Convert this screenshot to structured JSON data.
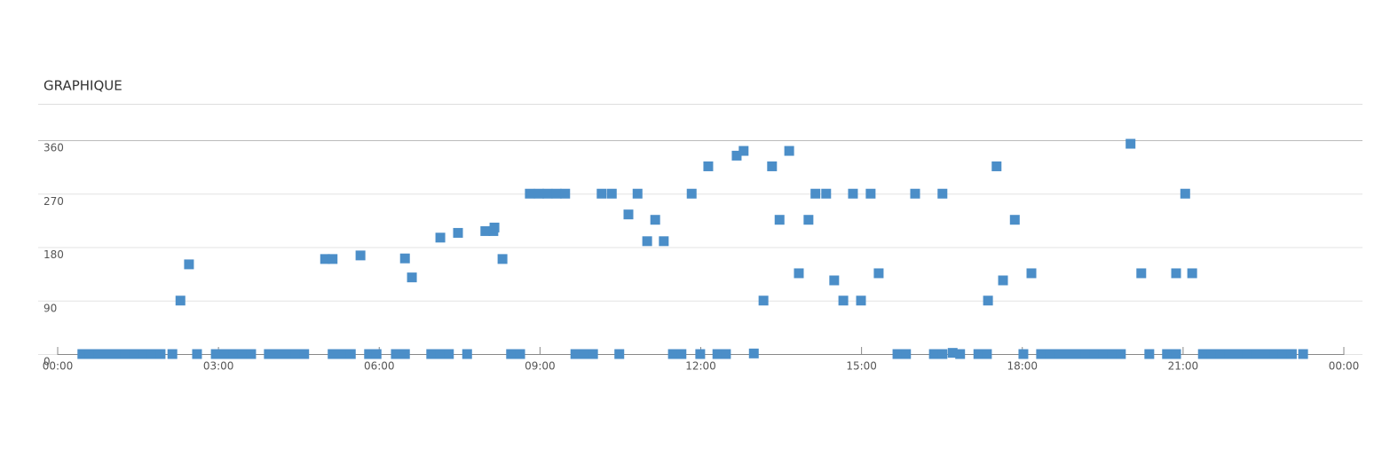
{
  "chart_data": {
    "type": "scatter",
    "title": "GRAPHIQUE",
    "color": "#4b8ec8",
    "grid": true,
    "x": [
      0.46,
      0.6,
      0.76,
      0.93,
      1.09,
      1.26,
      1.42,
      1.59,
      1.76,
      1.92,
      2.14,
      2.29,
      2.45,
      2.6,
      2.95,
      3.11,
      3.28,
      3.45,
      3.61,
      3.94,
      4.11,
      4.27,
      4.44,
      4.6,
      4.99,
      5.13,
      5.13,
      5.3,
      5.47,
      5.65,
      5.81,
      5.95,
      6.31,
      6.48,
      6.48,
      6.61,
      6.97,
      7.14,
      7.14,
      7.3,
      7.47,
      7.64,
      7.98,
      8.13,
      8.15,
      8.3,
      8.46,
      8.63,
      8.81,
      8.98,
      9.14,
      9.31,
      9.47,
      9.66,
      9.82,
      9.99,
      10.15,
      10.34,
      10.48,
      10.65,
      10.82,
      11.0,
      11.15,
      11.31,
      11.48,
      11.64,
      11.83,
      11.99,
      12.14,
      12.31,
      12.47,
      12.67,
      12.8,
      12.99,
      13.17,
      13.33,
      13.47,
      13.65,
      13.83,
      14.01,
      14.14,
      14.34,
      14.49,
      14.66,
      14.84,
      14.99,
      15.17,
      15.32,
      15.67,
      15.83,
      16.0,
      16.35,
      16.51,
      16.51,
      16.7,
      16.84,
      17.18,
      17.34,
      17.36,
      17.52,
      17.64,
      17.86,
      18.02,
      18.17,
      18.35,
      18.52,
      18.68,
      18.85,
      19.01,
      19.18,
      19.35,
      19.51,
      19.68,
      19.84,
      20.02,
      20.22,
      20.37,
      20.7,
      20.87,
      20.87,
      21.04,
      21.17,
      21.37,
      21.53,
      21.7,
      21.86,
      22.03,
      22.2,
      22.36,
      22.53,
      22.7,
      22.86,
      23.03,
      23.24
    ],
    "values": [
      0,
      0,
      0,
      0,
      0,
      0,
      0,
      0,
      0,
      0,
      0,
      90,
      151,
      0,
      0,
      0,
      0,
      0,
      0,
      0,
      0,
      0,
      0,
      0,
      160,
      160,
      0,
      0,
      0,
      166,
      0,
      0,
      0,
      0,
      161,
      129,
      0,
      0,
      196,
      0,
      204,
      0,
      207,
      207,
      213,
      160,
      0,
      0,
      270,
      270,
      270,
      270,
      270,
      0,
      0,
      0,
      270,
      270,
      0,
      235,
      270,
      190,
      226,
      190,
      0,
      0,
      270,
      0,
      316,
      0,
      0,
      334,
      342,
      1,
      90,
      316,
      226,
      342,
      136,
      226,
      270,
      270,
      124,
      90,
      270,
      90,
      270,
      136,
      0,
      0,
      270,
      0,
      0,
      270,
      2,
      0,
      0,
      0,
      90,
      316,
      124,
      226,
      0,
      136,
      0,
      0,
      0,
      0,
      0,
      0,
      0,
      0,
      0,
      0,
      354,
      136,
      0,
      0,
      0,
      136,
      270,
      136,
      0,
      0,
      0,
      0,
      0,
      0,
      0,
      0,
      0,
      0,
      0,
      0
    ],
    "xlim": [
      0,
      24
    ],
    "xticks": [
      {
        "value": 0,
        "label": "00:00"
      },
      {
        "value": 3,
        "label": "03:00"
      },
      {
        "value": 6,
        "label": "06:00"
      },
      {
        "value": 9,
        "label": "09:00"
      },
      {
        "value": 12,
        "label": "12:00"
      },
      {
        "value": 15,
        "label": "15:00"
      },
      {
        "value": 18,
        "label": "18:00"
      },
      {
        "value": 21,
        "label": "21:00"
      },
      {
        "value": 24,
        "label": "00:00"
      }
    ],
    "ylim": [
      0,
      360
    ],
    "yticks": [
      0,
      90,
      180,
      270,
      360
    ]
  }
}
